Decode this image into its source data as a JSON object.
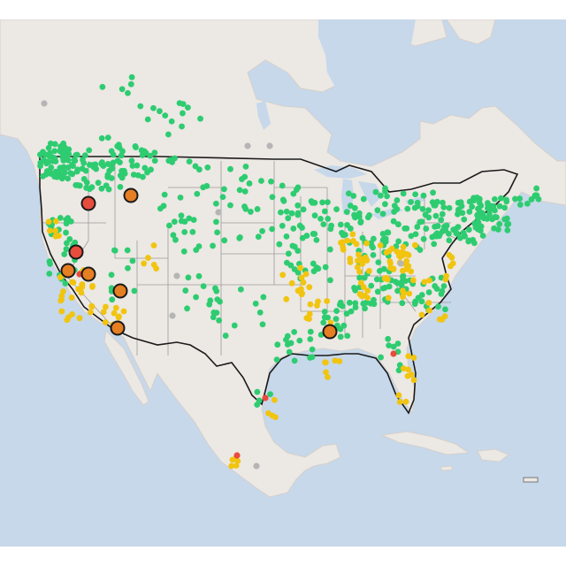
{
  "map": {
    "colors": {
      "water": "#c6d8ea",
      "land": "#ece8e4",
      "land_edge": "#d6d0cb",
      "us_border": "#1a1a1a",
      "state_lines": "#9b9b9b",
      "good": "#2ecc71",
      "moderate": "#f1c40f",
      "usg": "#e67e22",
      "unhealthy": "#e74c3c",
      "no_data": "#b5b5b5"
    },
    "marker_categories": [
      "good",
      "moderate",
      "unhealthy-for-sensitive",
      "unhealthy",
      "no-data"
    ],
    "highlight_counts": {
      "orange_large": 5,
      "red_large": 2
    }
  }
}
